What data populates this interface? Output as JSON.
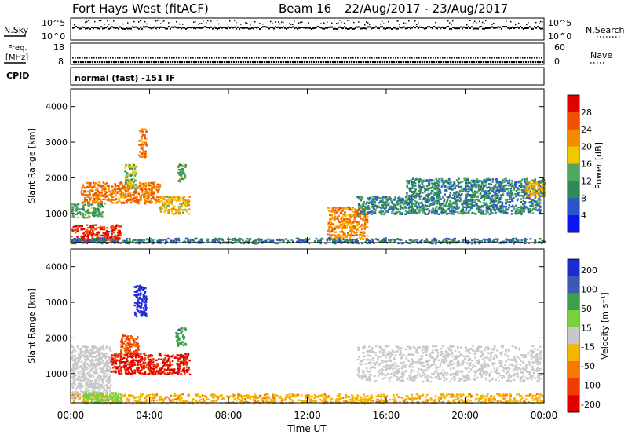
{
  "header": {
    "title": "Fort Hays West (fitACF)",
    "beam_label": "Beam 16",
    "date_range": "22/Aug/2017 - 23/Aug/2017"
  },
  "top_panels": {
    "nsky_label": "N.Sky",
    "nsearch_label": "N.Search",
    "nsky_ticks": [
      "10^5",
      "10^0"
    ],
    "freq_label_1": "Freq.",
    "freq_label_2": "[MHz]",
    "freq_ticks": [
      "18",
      "8"
    ],
    "nave_label": "Nave",
    "nave_ticks": [
      "60",
      "0"
    ],
    "cpid_label": "CPID",
    "cpid_text": "normal (fast) -151 IF"
  },
  "colors": {
    "power_scale": [
      "#0a14f0",
      "#2a55c8",
      "#2e8a58",
      "#4fa860",
      "#f0c800",
      "#f58c00",
      "#f05000",
      "#e00000"
    ],
    "velocity_scale": [
      "#1e2ad2",
      "#3c5ab4",
      "#3aa04a",
      "#78d23c",
      "#c8c8c8",
      "#f5b400",
      "#f57800",
      "#f03c00",
      "#e00000"
    ]
  },
  "chart_data": [
    {
      "type": "heatmap",
      "name": "power",
      "ylabel": "Slant Range [km]",
      "xlabel": "",
      "x_ticks": [
        "00:00",
        "04:00",
        "08:00",
        "12:00",
        "16:00",
        "20:00",
        "00:00"
      ],
      "y_ticks": [
        "1000",
        "2000",
        "3000",
        "4000"
      ],
      "ylim": [
        180,
        4500
      ],
      "colorbar_label": "Power [dB]",
      "colorbar_ticks": [
        "4",
        "8",
        "12",
        "16",
        "20",
        "24",
        "28"
      ],
      "colorbar_range": [
        0,
        30
      ],
      "patches": [
        {
          "t0": 0.0,
          "t1": 2.5,
          "r0": 180,
          "r1": 700,
          "value": 27
        },
        {
          "t0": 0.0,
          "t1": 1.6,
          "r0": 900,
          "r1": 1300,
          "value": 12
        },
        {
          "t0": 0.5,
          "t1": 4.5,
          "r0": 1300,
          "r1": 1900,
          "value": 22
        },
        {
          "t0": 2.7,
          "t1": 3.3,
          "r0": 1700,
          "r1": 2400,
          "value": 14
        },
        {
          "t0": 4.5,
          "t1": 6.0,
          "r0": 1000,
          "r1": 1500,
          "value": 18
        },
        {
          "t0": 5.4,
          "t1": 5.8,
          "r0": 1900,
          "r1": 2400,
          "value": 12
        },
        {
          "t0": 3.4,
          "t1": 3.8,
          "r0": 2600,
          "r1": 3400,
          "value": 22
        },
        {
          "t0": 13.0,
          "t1": 15.0,
          "r0": 300,
          "r1": 1200,
          "value": 21
        },
        {
          "t0": 14.5,
          "t1": 23.8,
          "r0": 1000,
          "r1": 1500,
          "value": 9
        },
        {
          "t0": 17.0,
          "t1": 24.0,
          "r0": 1500,
          "r1": 2000,
          "value": 9
        },
        {
          "t0": 23.0,
          "t1": 24.0,
          "r0": 1500,
          "r1": 1900,
          "value": 18
        },
        {
          "t0": 0.0,
          "t1": 24.0,
          "r0": 180,
          "r1": 320,
          "value": 8
        }
      ]
    },
    {
      "type": "heatmap",
      "name": "velocity",
      "ylabel": "Slant Range [km]",
      "xlabel": "Time UT",
      "x_ticks": [
        "00:00",
        "04:00",
        "08:00",
        "12:00",
        "16:00",
        "20:00",
        "00:00"
      ],
      "y_ticks": [
        "1000",
        "2000",
        "3000",
        "4000"
      ],
      "ylim": [
        180,
        4500
      ],
      "colorbar_label": "Velocity [m s⁻¹]",
      "colorbar_ticks": [
        "200",
        "100",
        "50",
        "15",
        "-15",
        "-50",
        "-100",
        "-200"
      ],
      "colorbar_range": [
        -250,
        250
      ],
      "patches": [
        {
          "t0": 0.0,
          "t1": 2.0,
          "r0": 300,
          "r1": 1800,
          "value": 0
        },
        {
          "t0": 2.0,
          "t1": 6.0,
          "r0": 1000,
          "r1": 1600,
          "value": -200
        },
        {
          "t0": 2.5,
          "t1": 3.4,
          "r0": 1600,
          "r1": 2100,
          "value": -150
        },
        {
          "t0": 3.2,
          "t1": 3.8,
          "r0": 2600,
          "r1": 3500,
          "value": 220
        },
        {
          "t0": 5.3,
          "t1": 5.8,
          "r0": 1800,
          "r1": 2300,
          "value": 120
        },
        {
          "t0": 14.5,
          "t1": 23.8,
          "r0": 800,
          "r1": 1800,
          "value": 0
        },
        {
          "t0": 0.0,
          "t1": 24.0,
          "r0": 180,
          "r1": 450,
          "value": -70
        },
        {
          "t0": 0.6,
          "t1": 2.5,
          "r0": 180,
          "r1": 500,
          "value": 60
        }
      ]
    }
  ]
}
